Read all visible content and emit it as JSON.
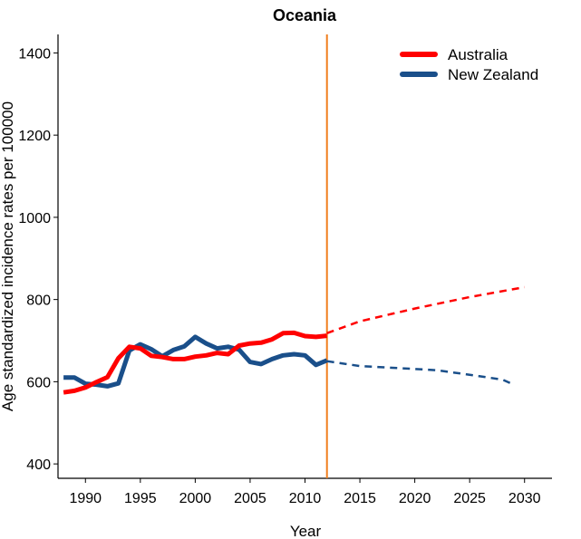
{
  "chart_data": {
    "type": "line",
    "title": "Oceania",
    "xlabel": "Year",
    "ylabel": "Age standardized incidence rates per 100000",
    "xlim": [
      1987.5,
      2032.5
    ],
    "ylim": [
      365,
      1445
    ],
    "x_ticks": [
      1990,
      1995,
      2000,
      2005,
      2010,
      2015,
      2020,
      2025,
      2030
    ],
    "y_ticks": [
      400,
      600,
      800,
      1000,
      1200,
      1400
    ],
    "divider_year": 2012,
    "legend_position": "top-right",
    "grid": false,
    "series": [
      {
        "name": "Australia",
        "color": "#ff0000",
        "observed": {
          "x": [
            1988,
            1989,
            1990,
            1991,
            1992,
            1993,
            1994,
            1995,
            1996,
            1997,
            1998,
            1999,
            2000,
            2001,
            2002,
            2003,
            2004,
            2005,
            2006,
            2007,
            2008,
            2009,
            2010,
            2011,
            2012
          ],
          "y": [
            574,
            578,
            586,
            599,
            611,
            657,
            685,
            681,
            663,
            660,
            655,
            655,
            661,
            664,
            670,
            667,
            688,
            693,
            695,
            703,
            718,
            719,
            711,
            709,
            712
          ]
        },
        "projected": {
          "x": [
            2012,
            2015,
            2020,
            2025,
            2030
          ],
          "y": [
            718,
            747,
            778,
            806,
            830
          ]
        }
      },
      {
        "name": "New Zealand",
        "color": "#1a4f8a",
        "observed": {
          "x": [
            1988,
            1989,
            1990,
            1991,
            1992,
            1993,
            1994,
            1995,
            1996,
            1997,
            1998,
            1999,
            2000,
            2001,
            2002,
            2003,
            2004,
            2005,
            2006,
            2007,
            2008,
            2009,
            2010,
            2011,
            2012
          ],
          "y": [
            610,
            610,
            595,
            593,
            589,
            596,
            676,
            691,
            679,
            662,
            677,
            686,
            709,
            693,
            681,
            685,
            678,
            648,
            643,
            655,
            664,
            667,
            664,
            641,
            652
          ]
        },
        "projected": {
          "x": [
            2012,
            2015,
            2020,
            2022,
            2025,
            2028,
            2029
          ],
          "y": [
            650,
            638,
            631,
            628,
            617,
            605,
            593
          ]
        }
      }
    ]
  },
  "colors": {
    "divider": "#f07f1e",
    "axis": "#000000"
  }
}
